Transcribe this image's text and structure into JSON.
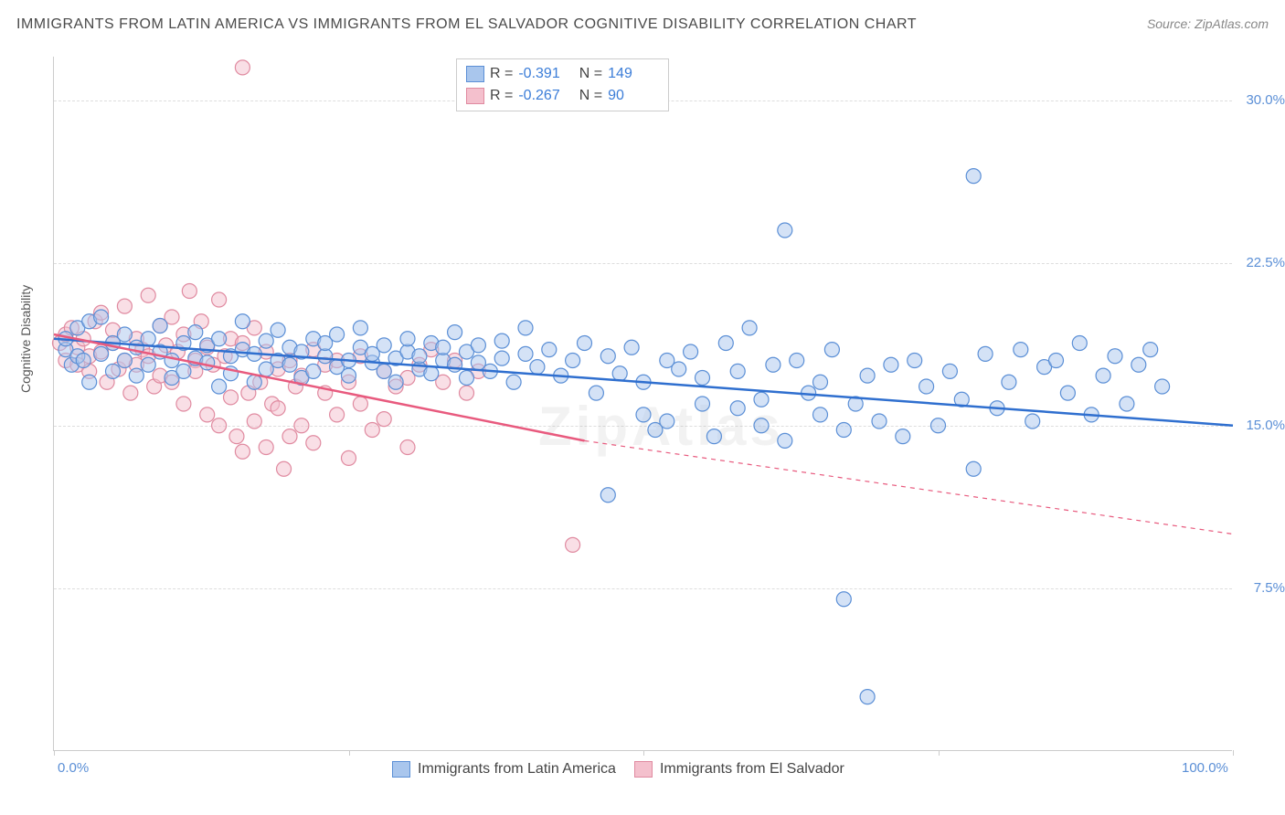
{
  "header": {
    "title": "IMMIGRANTS FROM LATIN AMERICA VS IMMIGRANTS FROM EL SALVADOR COGNITIVE DISABILITY CORRELATION CHART",
    "source": "Source: ZipAtlas.com"
  },
  "chart": {
    "type": "scatter",
    "ylabel": "Cognitive Disability",
    "watermark": "ZipAtlas",
    "xlim": [
      0,
      100
    ],
    "ylim": [
      0,
      32
    ],
    "x_ticks": [
      0,
      25,
      50,
      75,
      100
    ],
    "x_tick_labels": {
      "0": "0.0%",
      "100": "100.0%"
    },
    "y_gridlines": [
      7.5,
      15.0,
      22.5,
      30.0
    ],
    "y_tick_labels": {
      "7.5": "7.5%",
      "15.0": "15.0%",
      "22.5": "22.5%",
      "30.0": "30.0%"
    },
    "background_color": "#ffffff",
    "grid_color": "#dddddd",
    "axis_color": "#cccccc",
    "tick_label_color": "#5b8fd6",
    "title_color": "#4a4a4a",
    "title_fontsize": 16,
    "label_fontsize": 14,
    "marker_radius": 8,
    "marker_opacity": 0.5,
    "marker_stroke_width": 1.2,
    "trendline_width": 2.5,
    "series": [
      {
        "name": "Immigrants from Latin America",
        "fill_color": "#a9c6ed",
        "stroke_color": "#5b8fd6",
        "trend_color": "#2f6fcf",
        "R": "-0.391",
        "N": "149",
        "trend_line": {
          "x1": 0,
          "y1": 19.0,
          "x2": 100,
          "y2": 15.0
        },
        "trend_dashed": {
          "x1": 100,
          "y1": 15.0,
          "x2": 100,
          "y2": 15.0
        },
        "points": [
          [
            1,
            18.5
          ],
          [
            1,
            19.0
          ],
          [
            1.5,
            17.8
          ],
          [
            2,
            18.2
          ],
          [
            2,
            19.5
          ],
          [
            2.5,
            18.0
          ],
          [
            3,
            17.0
          ],
          [
            3,
            19.8
          ],
          [
            4,
            18.3
          ],
          [
            4,
            20.0
          ],
          [
            5,
            17.5
          ],
          [
            5,
            18.8
          ],
          [
            6,
            18.0
          ],
          [
            6,
            19.2
          ],
          [
            7,
            17.3
          ],
          [
            7,
            18.6
          ],
          [
            8,
            19.0
          ],
          [
            8,
            17.8
          ],
          [
            9,
            18.4
          ],
          [
            9,
            19.6
          ],
          [
            10,
            18.0
          ],
          [
            10,
            17.2
          ],
          [
            11,
            18.8
          ],
          [
            11,
            17.5
          ],
          [
            12,
            19.3
          ],
          [
            12,
            18.1
          ],
          [
            13,
            17.9
          ],
          [
            13,
            18.7
          ],
          [
            14,
            16.8
          ],
          [
            14,
            19.0
          ],
          [
            15,
            18.2
          ],
          [
            15,
            17.4
          ],
          [
            16,
            18.5
          ],
          [
            16,
            19.8
          ],
          [
            17,
            17.0
          ],
          [
            17,
            18.3
          ],
          [
            18,
            18.9
          ],
          [
            18,
            17.6
          ],
          [
            19,
            18.0
          ],
          [
            19,
            19.4
          ],
          [
            20,
            17.8
          ],
          [
            20,
            18.6
          ],
          [
            21,
            17.2
          ],
          [
            21,
            18.4
          ],
          [
            22,
            19.0
          ],
          [
            22,
            17.5
          ],
          [
            23,
            18.2
          ],
          [
            23,
            18.8
          ],
          [
            24,
            17.7
          ],
          [
            24,
            19.2
          ],
          [
            25,
            18.0
          ],
          [
            25,
            17.3
          ],
          [
            26,
            18.6
          ],
          [
            26,
            19.5
          ],
          [
            27,
            17.9
          ],
          [
            27,
            18.3
          ],
          [
            28,
            17.5
          ],
          [
            28,
            18.7
          ],
          [
            29,
            18.1
          ],
          [
            29,
            17.0
          ],
          [
            30,
            18.4
          ],
          [
            30,
            19.0
          ],
          [
            31,
            17.6
          ],
          [
            31,
            18.2
          ],
          [
            32,
            18.8
          ],
          [
            32,
            17.4
          ],
          [
            33,
            18.0
          ],
          [
            33,
            18.6
          ],
          [
            34,
            17.8
          ],
          [
            34,
            19.3
          ],
          [
            35,
            17.2
          ],
          [
            35,
            18.4
          ],
          [
            36,
            17.9
          ],
          [
            36,
            18.7
          ],
          [
            37,
            17.5
          ],
          [
            38,
            18.1
          ],
          [
            38,
            18.9
          ],
          [
            39,
            17.0
          ],
          [
            40,
            19.5
          ],
          [
            40,
            18.3
          ],
          [
            41,
            17.7
          ],
          [
            42,
            18.5
          ],
          [
            43,
            17.3
          ],
          [
            44,
            18.0
          ],
          [
            45,
            18.8
          ],
          [
            46,
            16.5
          ],
          [
            47,
            18.2
          ],
          [
            47,
            11.8
          ],
          [
            48,
            17.4
          ],
          [
            49,
            18.6
          ],
          [
            50,
            17.0
          ],
          [
            50,
            15.5
          ],
          [
            51,
            14.8
          ],
          [
            52,
            18.0
          ],
          [
            52,
            15.2
          ],
          [
            53,
            17.6
          ],
          [
            54,
            18.4
          ],
          [
            55,
            16.0
          ],
          [
            55,
            17.2
          ],
          [
            56,
            14.5
          ],
          [
            57,
            18.8
          ],
          [
            58,
            15.8
          ],
          [
            58,
            17.5
          ],
          [
            59,
            19.5
          ],
          [
            60,
            15.0
          ],
          [
            60,
            16.2
          ],
          [
            61,
            17.8
          ],
          [
            62,
            14.3
          ],
          [
            62,
            24.0
          ],
          [
            63,
            18.0
          ],
          [
            64,
            16.5
          ],
          [
            65,
            15.5
          ],
          [
            65,
            17.0
          ],
          [
            66,
            18.5
          ],
          [
            67,
            14.8
          ],
          [
            67,
            7.0
          ],
          [
            68,
            16.0
          ],
          [
            69,
            17.3
          ],
          [
            69,
            2.5
          ],
          [
            70,
            15.2
          ],
          [
            71,
            17.8
          ],
          [
            72,
            14.5
          ],
          [
            73,
            18.0
          ],
          [
            74,
            16.8
          ],
          [
            75,
            15.0
          ],
          [
            76,
            17.5
          ],
          [
            77,
            16.2
          ],
          [
            78,
            26.5
          ],
          [
            78,
            13.0
          ],
          [
            79,
            18.3
          ],
          [
            80,
            15.8
          ],
          [
            81,
            17.0
          ],
          [
            82,
            18.5
          ],
          [
            83,
            15.2
          ],
          [
            84,
            17.7
          ],
          [
            85,
            18.0
          ],
          [
            86,
            16.5
          ],
          [
            87,
            18.8
          ],
          [
            88,
            15.5
          ],
          [
            89,
            17.3
          ],
          [
            90,
            18.2
          ],
          [
            91,
            16.0
          ],
          [
            92,
            17.8
          ],
          [
            93,
            18.5
          ],
          [
            94,
            16.8
          ]
        ]
      },
      {
        "name": "Immigrants from El Salvador",
        "fill_color": "#f4c0cd",
        "stroke_color": "#e08aa0",
        "trend_color": "#e85a7e",
        "R": "-0.267",
        "N": "90",
        "trend_line": {
          "x1": 0,
          "y1": 19.2,
          "x2": 45,
          "y2": 14.3
        },
        "trend_dashed": {
          "x1": 45,
          "y1": 14.3,
          "x2": 100,
          "y2": 10.0
        },
        "points": [
          [
            0.5,
            18.8
          ],
          [
            1,
            19.2
          ],
          [
            1,
            18.0
          ],
          [
            1.5,
            19.5
          ],
          [
            2,
            17.8
          ],
          [
            2,
            18.6
          ],
          [
            2.5,
            19.0
          ],
          [
            3,
            18.2
          ],
          [
            3,
            17.5
          ],
          [
            3.5,
            19.8
          ],
          [
            4,
            18.4
          ],
          [
            4,
            20.2
          ],
          [
            4.5,
            17.0
          ],
          [
            5,
            18.8
          ],
          [
            5,
            19.4
          ],
          [
            5.5,
            17.6
          ],
          [
            6,
            18.0
          ],
          [
            6,
            20.5
          ],
          [
            6.5,
            16.5
          ],
          [
            7,
            19.0
          ],
          [
            7,
            17.8
          ],
          [
            7.5,
            18.5
          ],
          [
            8,
            21.0
          ],
          [
            8,
            18.2
          ],
          [
            8.5,
            16.8
          ],
          [
            9,
            19.6
          ],
          [
            9,
            17.3
          ],
          [
            9.5,
            18.7
          ],
          [
            10,
            20.0
          ],
          [
            10,
            17.0
          ],
          [
            10.5,
            18.4
          ],
          [
            11,
            19.2
          ],
          [
            11,
            16.0
          ],
          [
            11.5,
            21.2
          ],
          [
            12,
            18.0
          ],
          [
            12,
            17.5
          ],
          [
            12.5,
            19.8
          ],
          [
            13,
            15.5
          ],
          [
            13,
            18.6
          ],
          [
            13.5,
            17.8
          ],
          [
            14,
            20.8
          ],
          [
            14,
            15.0
          ],
          [
            14.5,
            18.2
          ],
          [
            15,
            16.3
          ],
          [
            15,
            19.0
          ],
          [
            15.5,
            14.5
          ],
          [
            16,
            18.8
          ],
          [
            16,
            13.8
          ],
          [
            16.5,
            16.5
          ],
          [
            17,
            19.5
          ],
          [
            17,
            15.2
          ],
          [
            17.5,
            17.0
          ],
          [
            18,
            14.0
          ],
          [
            18,
            18.4
          ],
          [
            18.5,
            16.0
          ],
          [
            19,
            17.6
          ],
          [
            19,
            15.8
          ],
          [
            19.5,
            13.0
          ],
          [
            20,
            18.0
          ],
          [
            20,
            14.5
          ],
          [
            20.5,
            16.8
          ],
          [
            21,
            17.3
          ],
          [
            21,
            15.0
          ],
          [
            22,
            18.5
          ],
          [
            22,
            14.2
          ],
          [
            23,
            16.5
          ],
          [
            23,
            17.8
          ],
          [
            24,
            15.5
          ],
          [
            24,
            18.0
          ],
          [
            25,
            13.5
          ],
          [
            25,
            17.0
          ],
          [
            26,
            16.0
          ],
          [
            26,
            18.2
          ],
          [
            27,
            14.8
          ],
          [
            28,
            17.5
          ],
          [
            28,
            15.3
          ],
          [
            29,
            16.8
          ],
          [
            30,
            17.2
          ],
          [
            30,
            14.0
          ],
          [
            31,
            17.8
          ],
          [
            32,
            18.5
          ],
          [
            33,
            17.0
          ],
          [
            34,
            18.0
          ],
          [
            35,
            16.5
          ],
          [
            36,
            17.5
          ],
          [
            16,
            31.5
          ],
          [
            44,
            9.5
          ]
        ]
      }
    ],
    "legend_bottom": [
      {
        "swatch_fill": "#a9c6ed",
        "swatch_stroke": "#5b8fd6",
        "label": "Immigrants from Latin America"
      },
      {
        "swatch_fill": "#f4c0cd",
        "swatch_stroke": "#e08aa0",
        "label": "Immigrants from El Salvador"
      }
    ]
  }
}
